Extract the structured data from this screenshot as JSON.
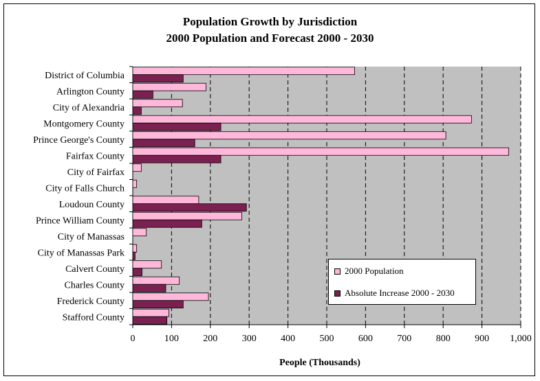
{
  "chart_data": {
    "type": "bar",
    "orientation": "horizontal",
    "title": "Population Growth by Jurisdiction",
    "subtitle": "2000 Population and Forecast 2000 - 2030",
    "xlabel": "People (Thousands)",
    "ylabel": "",
    "xlim": [
      0,
      1000
    ],
    "xticks": [
      "0",
      "100",
      "200",
      "300",
      "400",
      "500",
      "600",
      "700",
      "800",
      "900",
      "1,000"
    ],
    "grid": "vertical dashed",
    "legend_position": "bottom-right",
    "categories": [
      "District of Columbia",
      "Arlington County",
      "City of Alexandria",
      "Montgomery County",
      "Prince George's County",
      "Fairfax County",
      "City of Fairfax",
      "City of Falls Church",
      "Loudoun County",
      "Prince William County",
      "City of Manassas",
      "City of Manassas Park",
      "Calvert County",
      "Charles County",
      "Frederick County",
      "Stafford County"
    ],
    "series": [
      {
        "name": "2000 Population",
        "color": "#FFB7DA",
        "values": [
          572,
          189,
          128,
          873,
          807,
          969,
          22,
          10,
          170,
          281,
          35,
          10,
          74,
          120,
          195,
          93
        ]
      },
      {
        "name": "Absolute Increase 2000 - 2030",
        "color": "#7B2151",
        "values": [
          130,
          52,
          22,
          227,
          160,
          227,
          0,
          0,
          293,
          178,
          0,
          6,
          24,
          85,
          130,
          88
        ]
      }
    ]
  }
}
